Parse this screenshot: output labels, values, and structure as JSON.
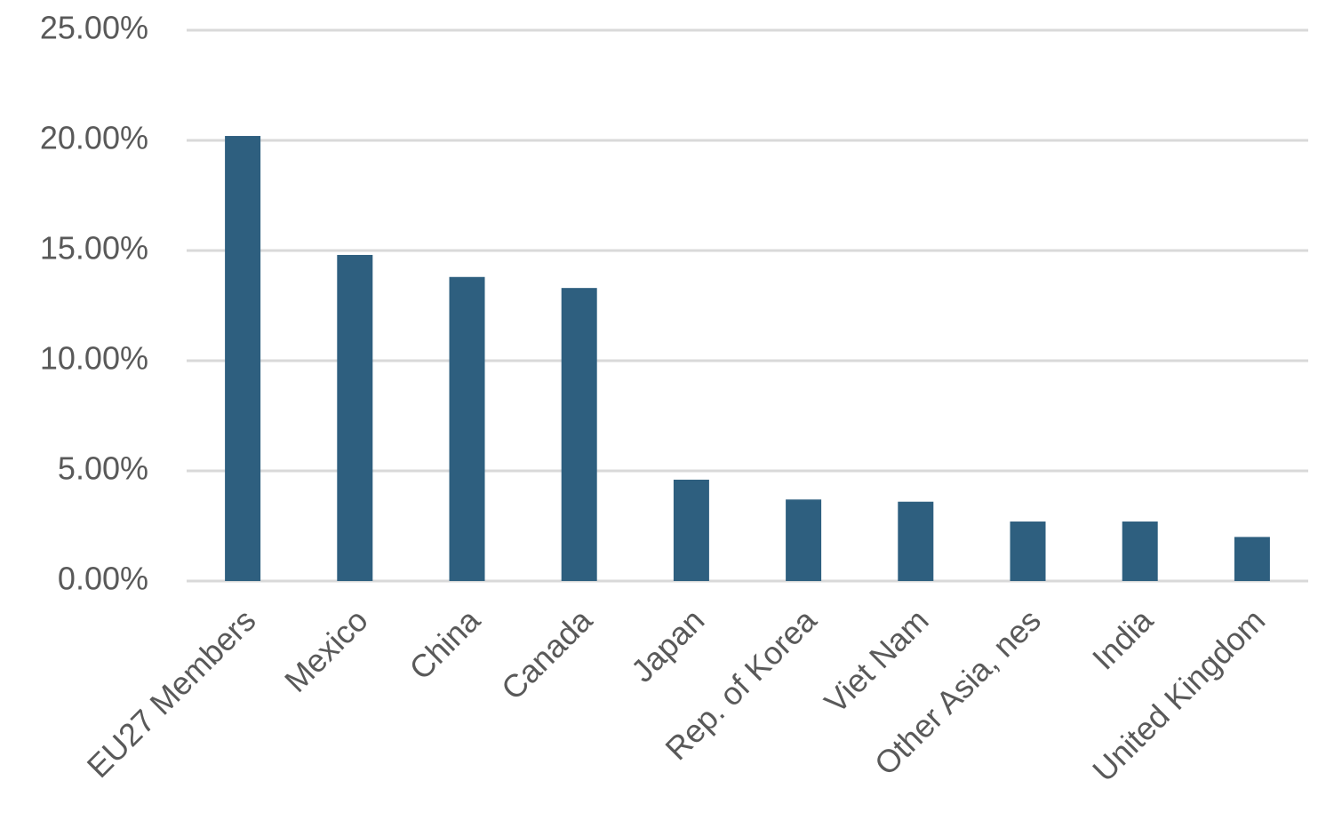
{
  "chart_data": {
    "type": "bar",
    "categories": [
      "EU27 Members",
      "Mexico",
      "China",
      "Canada",
      "Japan",
      "Rep. of Korea",
      "Viet Nam",
      "Other Asia, nes",
      "India",
      "United Kingdom"
    ],
    "values": [
      20.2,
      14.8,
      13.8,
      13.3,
      4.6,
      3.7,
      3.6,
      2.7,
      2.7,
      2.0
    ],
    "color": "#2e5f7f",
    "ylim": [
      0,
      25
    ],
    "yticks": [
      {
        "value": 0,
        "label": "0.00%"
      },
      {
        "value": 5,
        "label": "5.00%"
      },
      {
        "value": 10,
        "label": "10.00%"
      },
      {
        "value": 15,
        "label": "15.00%"
      },
      {
        "value": 20,
        "label": "20.00%"
      },
      {
        "value": 25,
        "label": "25.00%"
      }
    ],
    "grid": true
  }
}
